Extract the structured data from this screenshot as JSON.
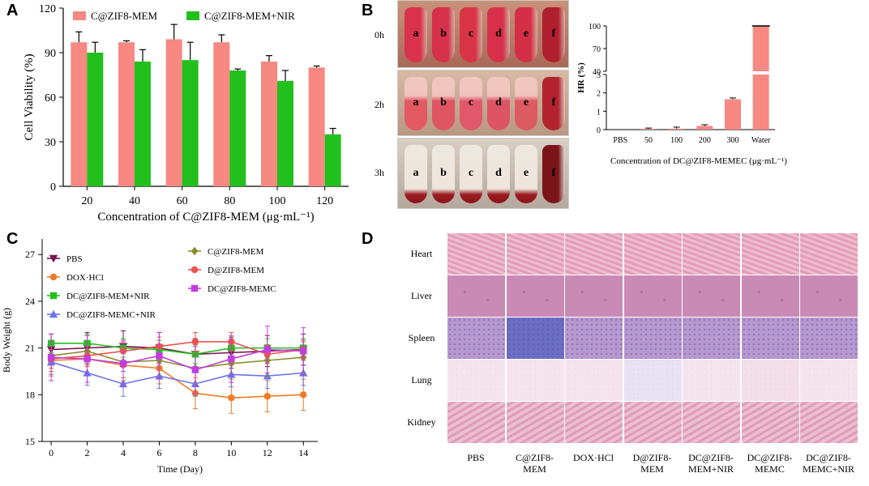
{
  "panels": {
    "a": "A",
    "b": "B",
    "c": "C",
    "d": "D"
  },
  "chart_data": [
    {
      "type": "bar",
      "title": "",
      "xlabel": "Concentration of C@ZIF8-MEM (μg·mL⁻¹)",
      "ylabel": "Cell Viability (%)",
      "categories": [
        "20",
        "40",
        "60",
        "80",
        "100",
        "120"
      ],
      "yticks": [
        "0",
        "30",
        "60",
        "90",
        "120"
      ],
      "ylim": [
        0,
        120
      ],
      "legend": "top",
      "series": [
        {
          "name": "C@ZIF8-MEM",
          "color": "#f78882",
          "values": [
            97,
            97,
            99,
            97,
            84,
            80
          ],
          "errors": [
            7,
            1,
            10,
            5,
            4,
            1
          ]
        },
        {
          "name": "C@ZIF8-MEM+NIR",
          "color": "#22c01d",
          "values": [
            90,
            84,
            85,
            78,
            71,
            35
          ],
          "errors": [
            7,
            8,
            12,
            1,
            7,
            4
          ]
        }
      ]
    },
    {
      "type": "bar",
      "title": "",
      "xlabel": "Concentration of DC@ZIF8-MEMEC (μg·mL⁻¹)",
      "ylabel": "HR (%)",
      "categories": [
        "PBS",
        "50",
        "100",
        "200",
        "300",
        "Water"
      ],
      "upper_ticks": [
        "40",
        "70",
        "100"
      ],
      "lower_ticks": [
        "0",
        "1",
        "2",
        "3"
      ],
      "broken_axis": {
        "lower": [
          0,
          3
        ],
        "upper": [
          40,
          100
        ]
      },
      "color": "#f78882",
      "values": [
        0,
        0.02,
        0.05,
        0.2,
        1.65,
        100
      ],
      "errors": [
        0,
        0.02,
        0.04,
        0.02,
        0.03,
        0.5
      ]
    },
    {
      "type": "line",
      "title": "",
      "xlabel": "Time (Day)",
      "ylabel": "Body Weight (g)",
      "x": [
        0,
        2,
        4,
        6,
        8,
        10,
        12,
        14
      ],
      "xticks": [
        "0",
        "2",
        "4",
        "6",
        "8",
        "10",
        "12",
        "14"
      ],
      "yticks": [
        "15",
        "18",
        "21",
        "24",
        "27"
      ],
      "ylim": [
        15,
        28
      ],
      "xlim": [
        -0.5,
        14.8
      ],
      "series": [
        {
          "name": "PBS",
          "color": "#7a1250",
          "marker": "triangle-down",
          "values": [
            20.9,
            21.0,
            21.1,
            21.0,
            20.6,
            20.7,
            20.8,
            20.9
          ],
          "err": 1.0
        },
        {
          "name": "DOX·HCl",
          "color": "#f07a22",
          "marker": "circle",
          "values": [
            20.2,
            20.3,
            19.9,
            19.7,
            18.1,
            17.8,
            17.9,
            18.0
          ],
          "err": 1.0
        },
        {
          "name": "DC@ZIF8-MEM+NIR",
          "color": "#22c01d",
          "marker": "square",
          "values": [
            21.3,
            21.3,
            21.0,
            20.9,
            20.6,
            21.0,
            21.0,
            21.0
          ],
          "err": 0.6
        },
        {
          "name": "DC@ZIF8-MEMC+NIR",
          "color": "#6a74ea",
          "marker": "triangle-up",
          "values": [
            20.1,
            19.4,
            18.7,
            19.2,
            18.7,
            19.3,
            19.2,
            19.4
          ],
          "err": 0.8
        },
        {
          "name": "C@ZIF8-MEM",
          "color": "#8c8c2a",
          "marker": "diamond",
          "values": [
            20.5,
            20.8,
            20.1,
            20.2,
            19.7,
            20.0,
            20.2,
            20.4
          ],
          "err": 1.0
        },
        {
          "name": "D@ZIF8-MEM",
          "color": "#f0504e",
          "marker": "circle",
          "values": [
            20.3,
            20.5,
            20.8,
            21.1,
            21.4,
            21.4,
            20.6,
            20.9
          ],
          "err": 0.6
        },
        {
          "name": "DC@ZIF8-MEMC",
          "color": "#c23ee0",
          "marker": "square",
          "values": [
            20.4,
            20.3,
            20.0,
            20.5,
            19.6,
            20.3,
            20.9,
            20.8
          ],
          "err": 1.5
        }
      ]
    }
  ],
  "panel_b": {
    "time_labels": [
      "0h",
      "2h",
      "3h"
    ],
    "tube_letters": [
      "a",
      "b",
      "c",
      "d",
      "e",
      "f"
    ]
  },
  "panel_d": {
    "organs": [
      "Heart",
      "Liver",
      "Spleen",
      "Lung",
      "Kidney"
    ],
    "groups": [
      [
        "PBS",
        ""
      ],
      [
        "C@ZIF8-",
        "MEM"
      ],
      [
        "DOX·HCl",
        ""
      ],
      [
        "D@ZIF8-",
        "MEM"
      ],
      [
        "DC@ZIF8-",
        "MEM+NIR"
      ],
      [
        "DC@ZIF8-",
        "MEMC"
      ],
      [
        "DC@ZIF8-",
        "MEMC+NIR"
      ]
    ],
    "organ_colors": [
      "#e8a7bd",
      "#c98ab5",
      "#b798cf",
      "#d27aa6",
      "#e3a3bd"
    ]
  }
}
